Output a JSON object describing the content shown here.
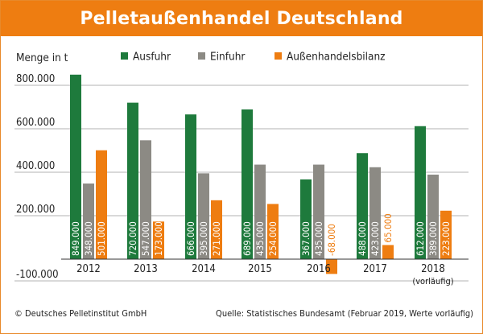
{
  "title": "Pelletaußenhandel Deutschland",
  "footer": {
    "copyright": "© Deutsches Pelletinstitut GmbH",
    "source": "Quelle: Statistisches Bundesamt (Februar 2019, Werte vorläufig)"
  },
  "chart_data": {
    "type": "bar",
    "title": "Pelletaußenhandel Deutschland",
    "ylabel": "Menge in t",
    "xlabel": "",
    "ylim": [
      -100000,
      900000
    ],
    "yticks": [
      -100000,
      200000,
      400000,
      600000,
      800000
    ],
    "ytick_labels": [
      "-100.000",
      "200.000",
      "400.000",
      "600.000",
      "800.000"
    ],
    "grid": true,
    "legend_position": "top",
    "categories": [
      "2012",
      "2013",
      "2014",
      "2015",
      "2016",
      "2017",
      "2018"
    ],
    "category_notes": [
      "",
      "",
      "",
      "",
      "",
      "",
      "(vorläufig)"
    ],
    "series": [
      {
        "name": "Ausfuhr",
        "color": "#1e7a3c",
        "values": [
          849000,
          720000,
          666000,
          689000,
          367000,
          488000,
          612000
        ],
        "labels": [
          "849.000",
          "720.000",
          "666.000",
          "689.000",
          "367.000",
          "488.000",
          "612.000"
        ]
      },
      {
        "name": "Einfuhr",
        "color": "#8c8a84",
        "values": [
          348000,
          547000,
          395000,
          435000,
          435000,
          423000,
          389000
        ],
        "labels": [
          "348.000",
          "547.000",
          "395.000",
          "435.000",
          "435.000",
          "423.000",
          "389.000"
        ]
      },
      {
        "name": "Außenhandelsbilanz",
        "color": "#ee7d11",
        "values": [
          501000,
          173000,
          271000,
          254000,
          -68000,
          65000,
          223000
        ],
        "labels": [
          "501.000",
          "173.000",
          "271.000",
          "254.000",
          "-68.000",
          "65.000",
          "223.000"
        ]
      }
    ]
  }
}
